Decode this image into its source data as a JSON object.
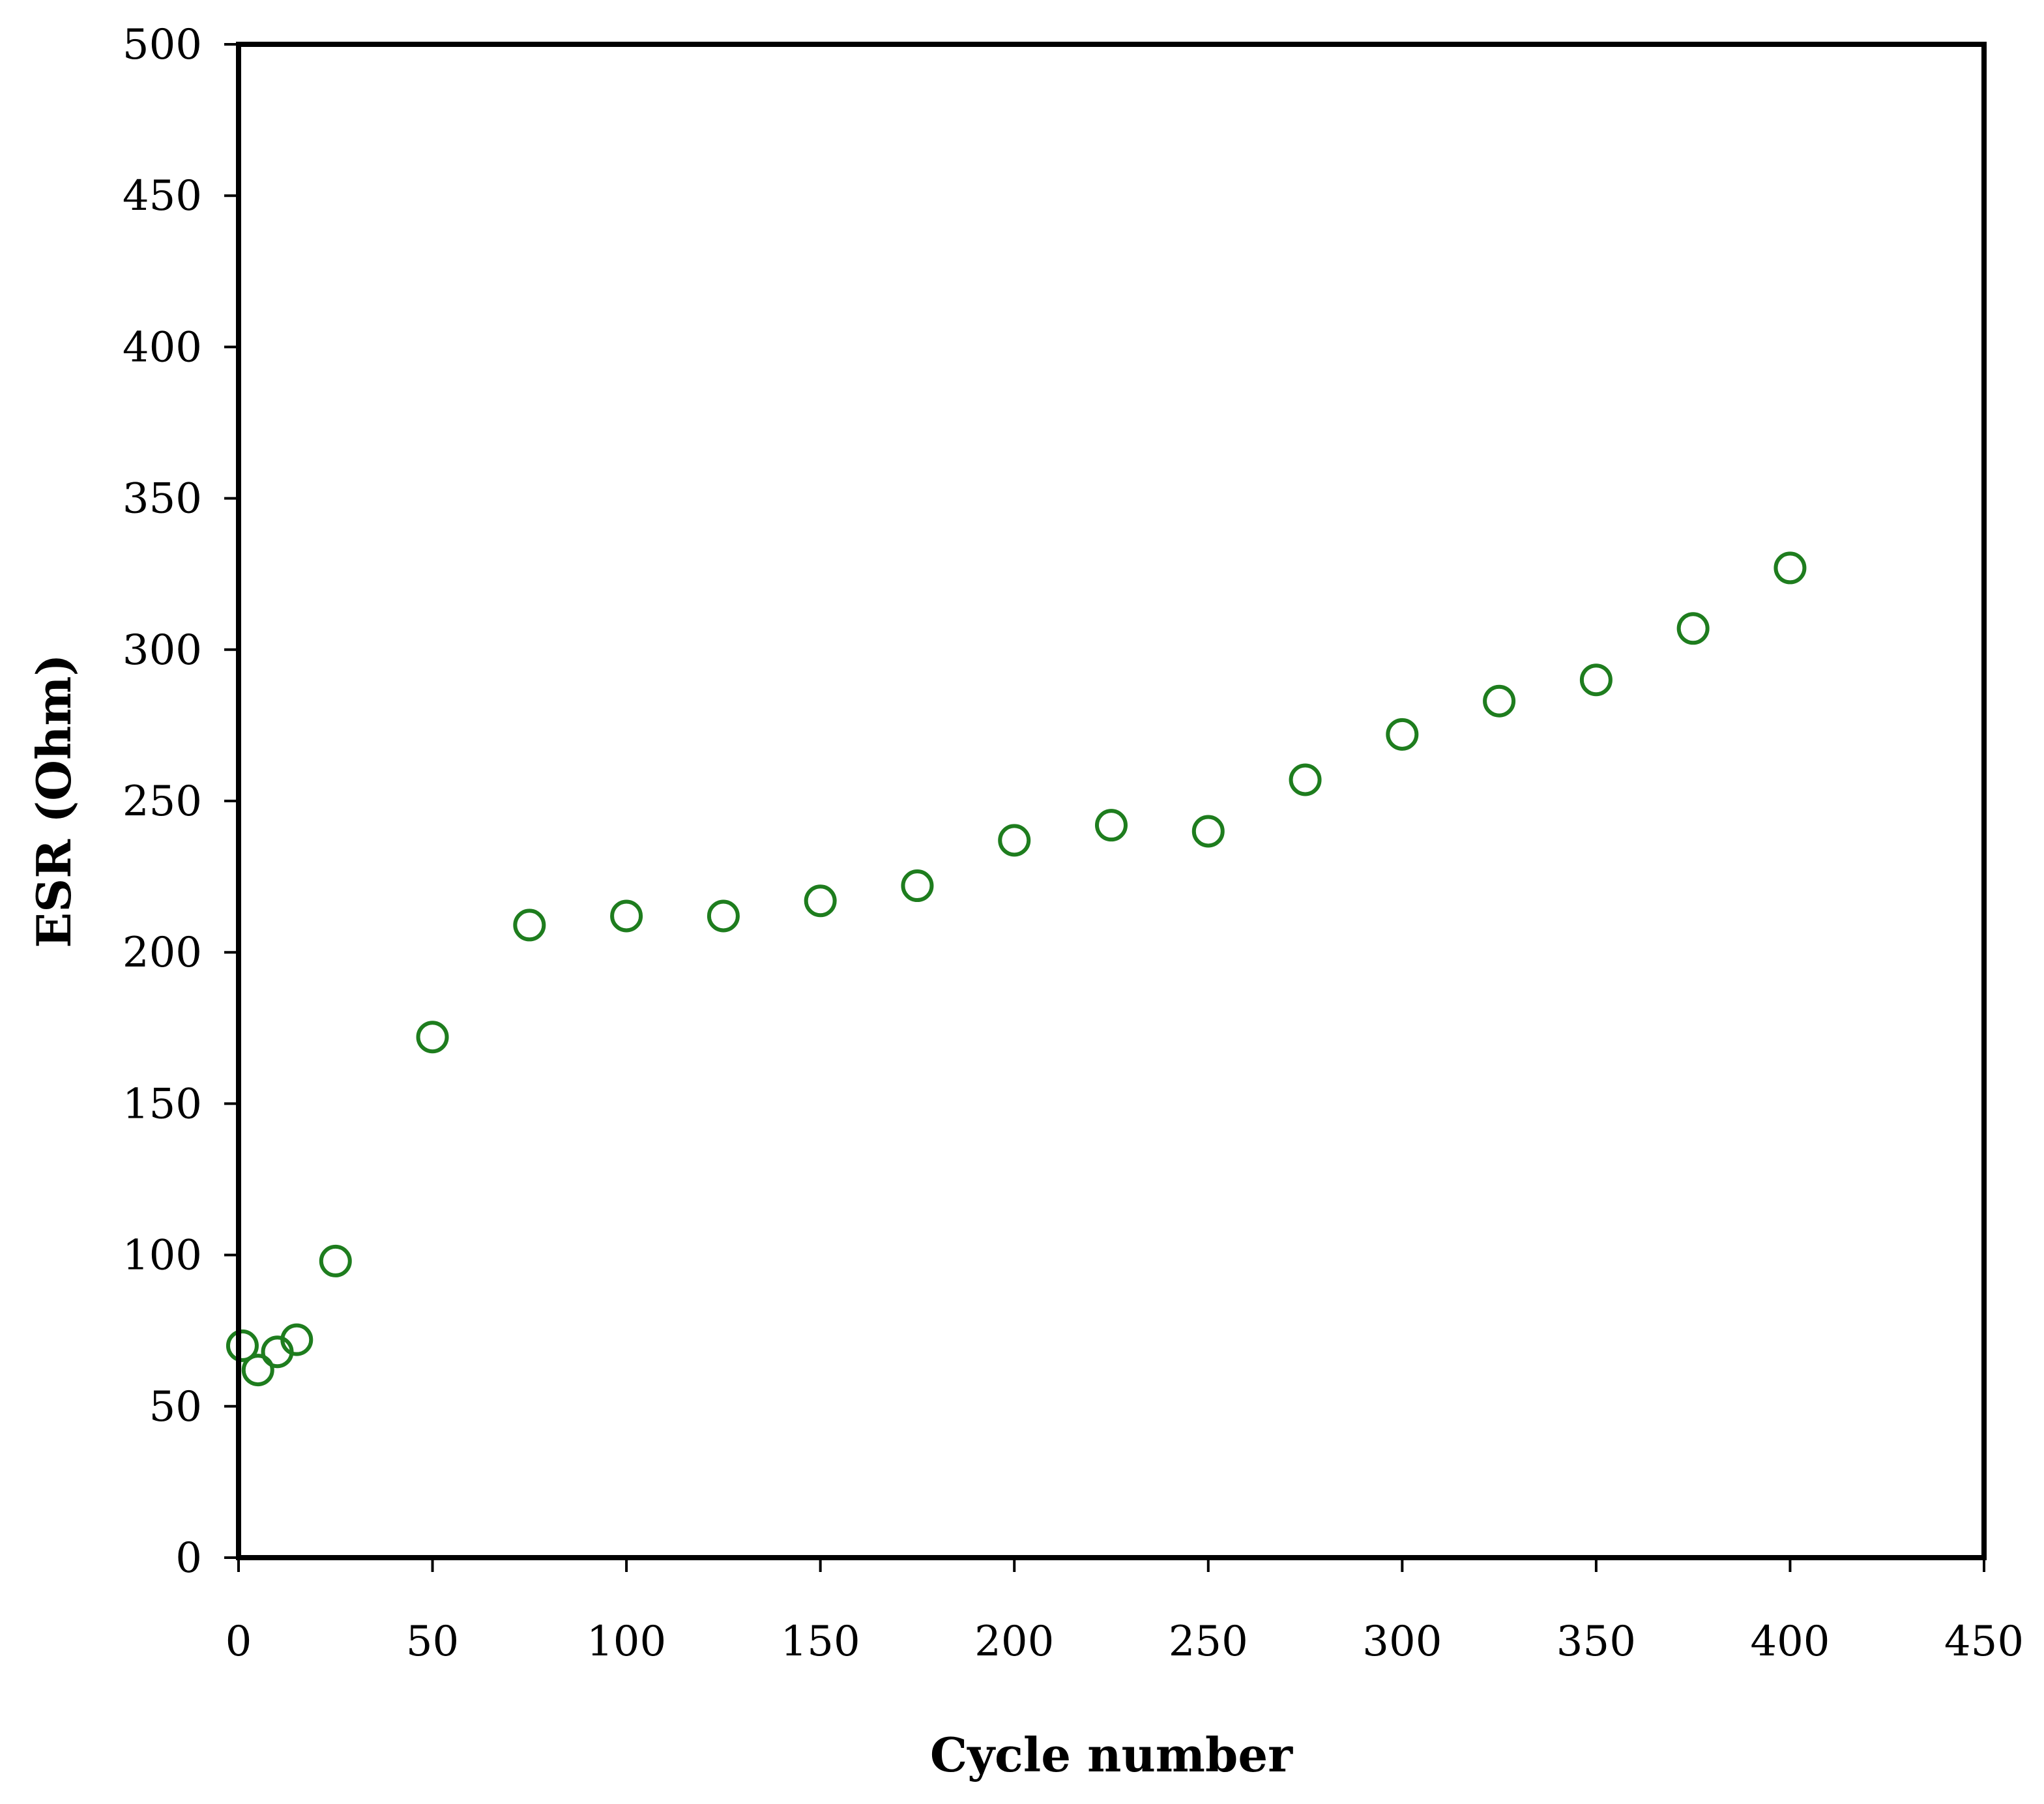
{
  "chart_data": {
    "type": "scatter",
    "title": "",
    "xlabel": "Cycle number",
    "ylabel": "ESR (Ohm)",
    "xlim": [
      0,
      450
    ],
    "ylim": [
      0,
      500
    ],
    "x_ticks": [
      "0",
      "50",
      "100",
      "150",
      "200",
      "250",
      "300",
      "350",
      "400",
      "450"
    ],
    "y_ticks": [
      "0",
      "50",
      "100",
      "150",
      "200",
      "250",
      "300",
      "350",
      "400",
      "450",
      "500"
    ],
    "grid": false,
    "legend": "none",
    "marker": "open-circle",
    "colors": {
      "marker": "#1e7d1e",
      "axis": "#000000"
    },
    "series": [
      {
        "x": [
          1,
          5,
          10,
          15,
          25,
          50,
          75,
          100,
          125,
          150,
          175,
          200,
          225,
          250,
          275,
          300,
          325,
          350,
          375,
          400
        ],
        "y": [
          70,
          62,
          68,
          72,
          98,
          172,
          209,
          212,
          212,
          217,
          222,
          237,
          242,
          240,
          257,
          272,
          283,
          290,
          307,
          327
        ]
      }
    ]
  }
}
